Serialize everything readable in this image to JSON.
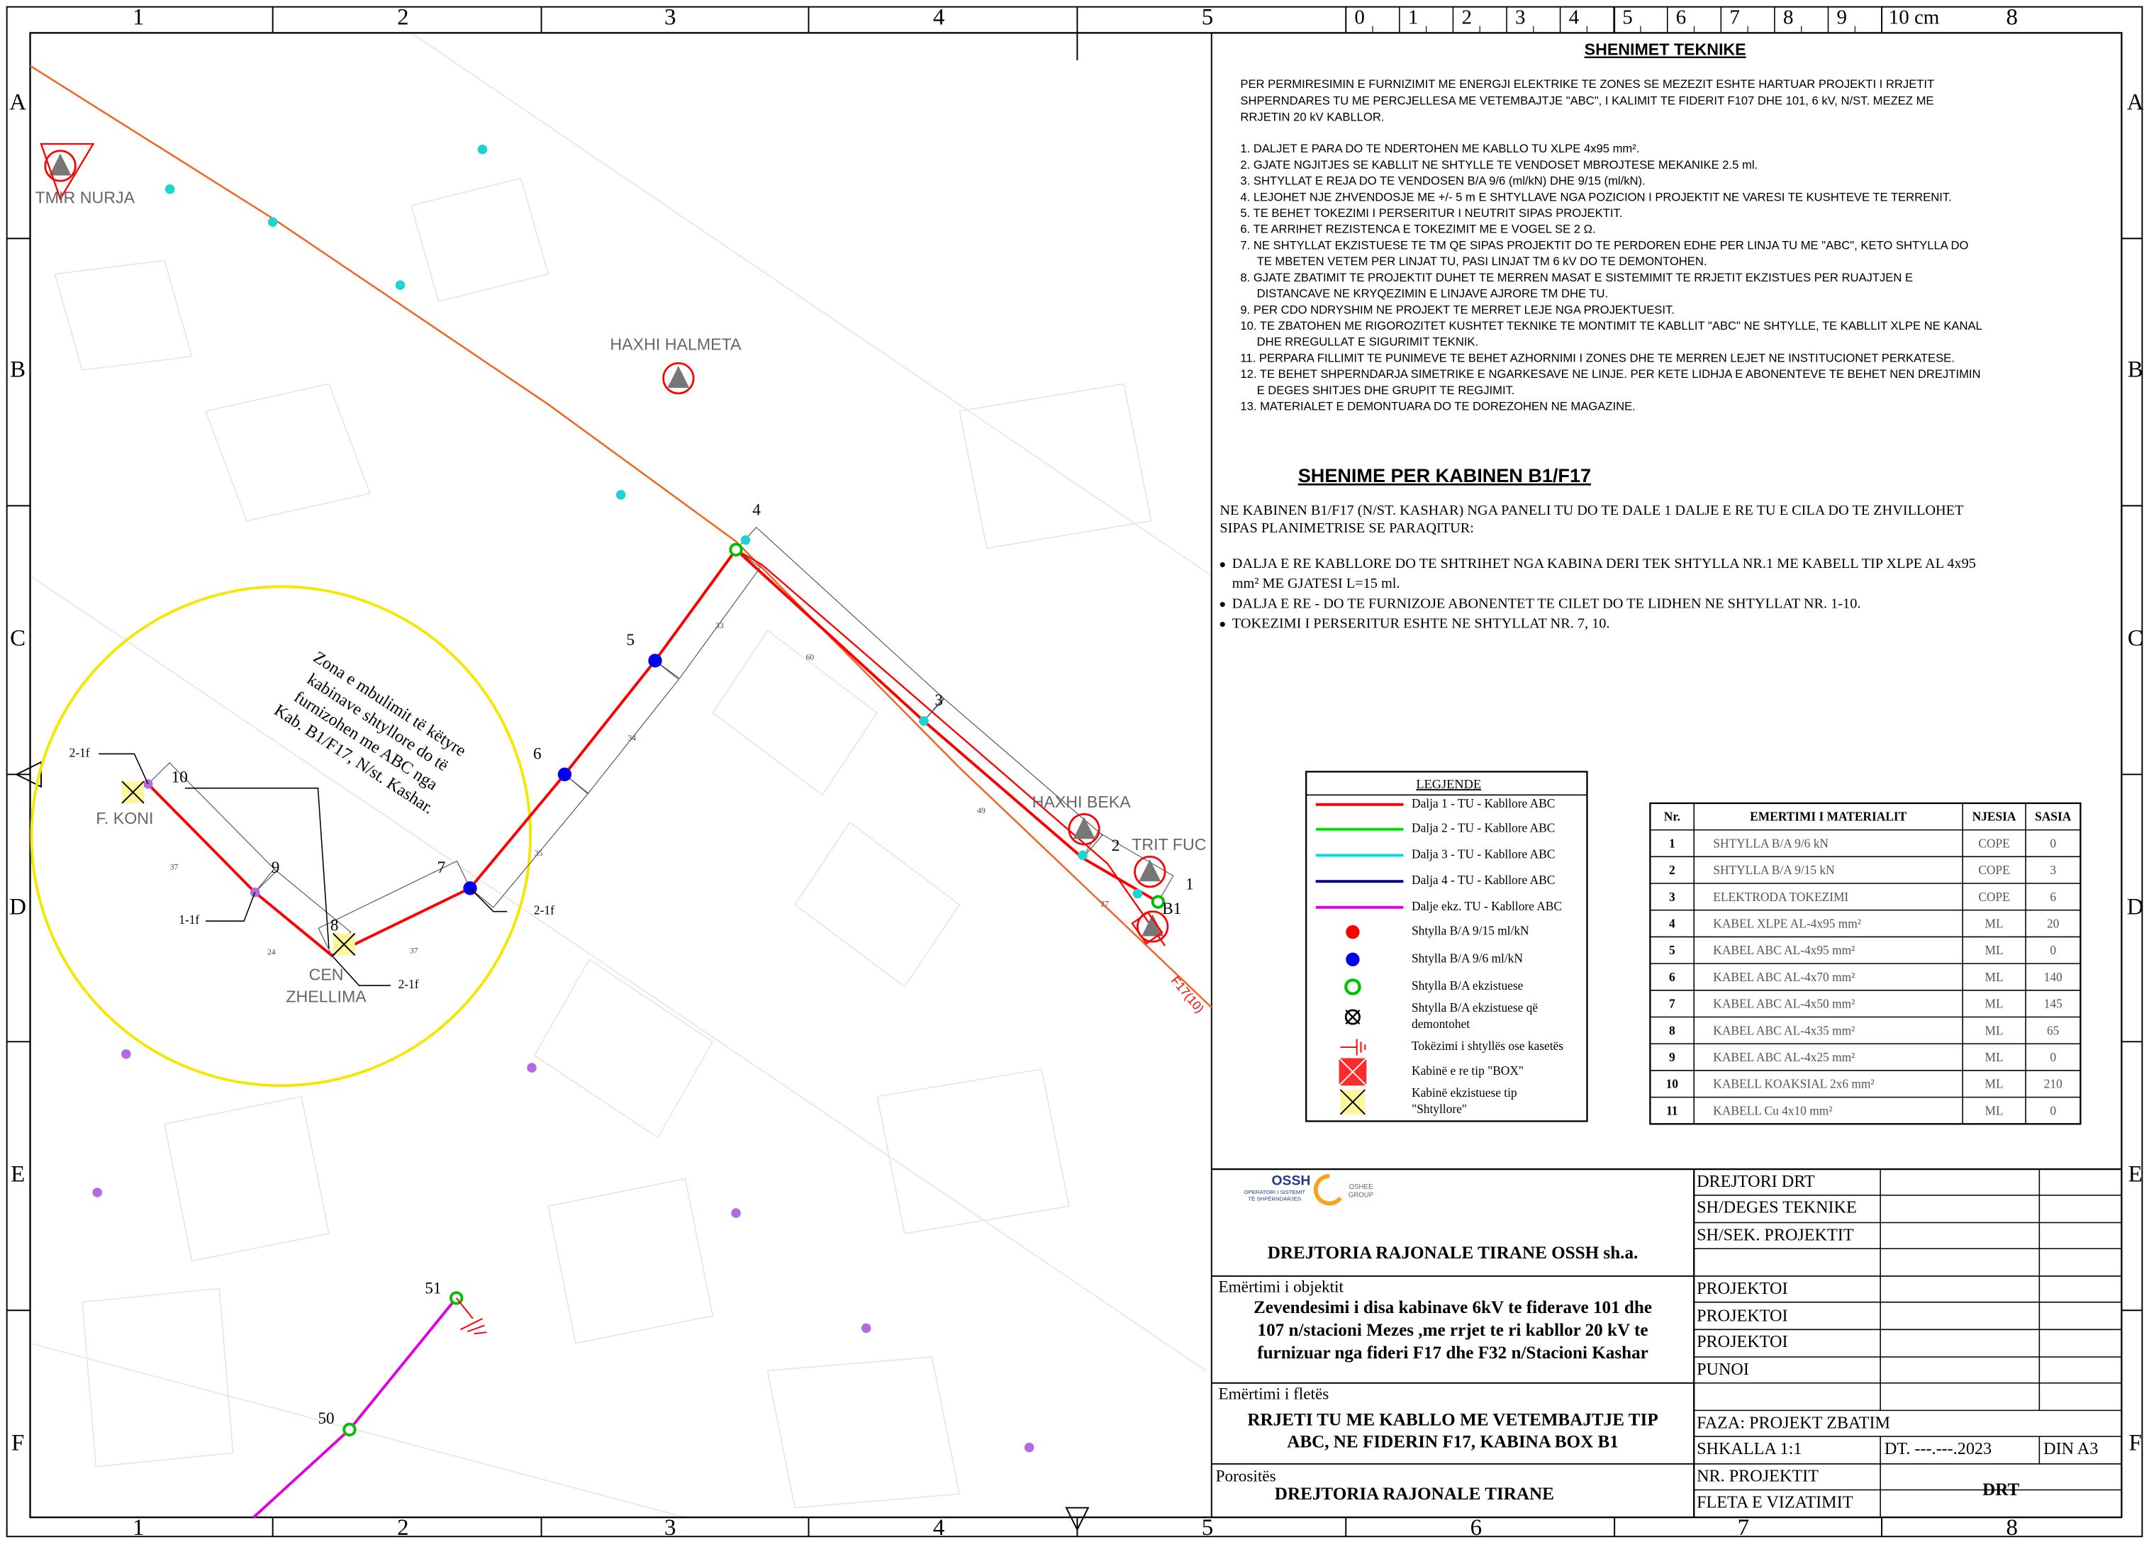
{
  "frame": {
    "columns": [
      "1",
      "2",
      "3",
      "4",
      "5",
      "6",
      "7",
      "8"
    ],
    "rows": [
      "A",
      "B",
      "C",
      "D",
      "E",
      "F"
    ],
    "scale_labels": [
      "0",
      "1",
      "2",
      "3",
      "4",
      "5",
      "6",
      "7",
      "8",
      "9",
      "10 cm"
    ]
  },
  "map": {
    "places": [
      "TMIR NURJA",
      "HAXHI HALMETA",
      "HAXHI BEKA",
      "TRIT FUC",
      "F. KONI",
      "CEN",
      "ZHELLIMA"
    ],
    "poles": [
      "1",
      "2",
      "3",
      "4",
      "5",
      "6",
      "7",
      "8",
      "9",
      "10",
      "51",
      "50",
      "B1"
    ],
    "zone_note": [
      "Zona e mbulimit të këtyre",
      "kabinave shtyllore do të",
      "furnizohen me ABC nga",
      "Kab. B1/F17, N/st. Kashar."
    ],
    "connectors": [
      "2-1f",
      "1-1f",
      "2-1f",
      "2-1f"
    ],
    "lengths": [
      "37",
      "24",
      "37",
      "35",
      "34",
      "33",
      "60",
      "49",
      "27"
    ],
    "feeder": "F17(10)"
  },
  "notes": {
    "title": "SHENIMET TEKNIKE",
    "intro": [
      "PER PERMIRESIMIN E FURNIZIMIT ME ENERGJI ELEKTRIKE TE ZONES SE MEZEZIT ESHTE HARTUAR PROJEKTI I RRJETIT",
      "SHPERNDARES TU ME PERCJELLESA ME VETEMBAJTJE \"ABC\", I KALIMIT TE FIDERIT F107 DHE 101, 6 kV, N/ST. MEZEZ ME",
      "RRJETIN 20 kV KABLLOR."
    ],
    "items": [
      [
        "1.  DALJET E PARA DO TE NDERTOHEN ME KABLLO TU XLPE 4x95 mm²."
      ],
      [
        "2.  GJATE NGJITJES SE KABLLIT NE SHTYLLE TE VENDOSET MBROJTESE MEKANIKE 2.5 ml."
      ],
      [
        "3.  SHTYLLAT E REJA DO TE VENDOSEN B/A 9/6 (ml/kN) DHE 9/15 (ml/kN)."
      ],
      [
        "4.  LEJOHET NJE ZHVENDOSJE ME +/- 5 m E SHTYLLAVE NGA POZICION I PROJEKTIT NE VARESI TE KUSHTEVE TE TERRENIT."
      ],
      [
        "5.  TE BEHET TOKEZIMI I PERSERITUR I NEUTRIT SIPAS PROJEKTIT."
      ],
      [
        "6.  TE ARRIHET REZISTENCA E TOKEZIMIT ME E VOGEL SE 2 Ω."
      ],
      [
        "7.  NE SHTYLLAT EKZISTUESE TE TM QE SIPAS PROJEKTIT DO TE PERDOREN EDHE PER LINJA TU ME \"ABC\", KETO SHTYLLA DO",
        "TE MBETEN VETEM PER LINJAT TU, PASI LINJAT TM 6 kV DO TE DEMONTOHEN."
      ],
      [
        "8.  GJATE ZBATIMIT TE PROJEKTIT DUHET TE MERREN MASAT E SISTEMIMIT TE RRJETIT EKZISTUES PER RUAJTJEN E",
        "DISTANCAVE NE KRYQEZIMIN E LINJAVE AJRORE TM DHE TU."
      ],
      [
        "9.  PER CDO NDRYSHIM NE PROJEKT TE MERRET LEJE NGA PROJEKTUESIT."
      ],
      [
        "10. TE ZBATOHEN ME RIGOROZITET KUSHTET TEKNIKE TE MONTIMIT TE KABLLIT \"ABC\" NE SHTYLLE, TE KABLLIT XLPE NE KANAL",
        "DHE RREGULLAT E SIGURIMIT TEKNIK."
      ],
      [
        "11. PERPARA FILLIMIT TE PUNIMEVE TE BEHET AZHORNIMI I ZONES DHE TE MERREN LEJET NE INSTITUCIONET PERKATESE."
      ],
      [
        "12. TE BEHET SHPERNDARJA SIMETRIKE E NGARKESAVE NE LINJE. PER KETE LIDHJA E ABONENTEVE TE BEHET NEN DREJTIMIN",
        "E DEGES SHITJES DHE GRUPIT TE REGJIMIT."
      ],
      [
        "13. MATERIALET E DEMONTUARA DO TE DOREZOHEN NE MAGAZINE."
      ]
    ]
  },
  "cabin_notes": {
    "title": "SHENIME PER KABINEN B1/F17",
    "intro": [
      "NE KABINEN B1/F17 (N/ST. KASHAR) NGA PANELI TU DO TE DALE 1 DALJE E RE TU E CILA DO TE ZHVILLOHET",
      "SIPAS PLANIMETRISE SE PARAQITUR:"
    ],
    "bullets": [
      [
        "DALJA E RE KABLLORE DO TE SHTRIHET NGA KABINA DERI TEK SHTYLLA NR.1 ME KABELL TIP XLPE AL 4x95",
        "mm² ME GJATESI L=15 ml."
      ],
      [
        "DALJA E RE - DO TE FURNIZOJE ABONENTET TE CILET DO TE LIDHEN NE SHTYLLAT NR. 1-10."
      ],
      [
        "TOKEZIMI I PERSERITUR ESHTE NE SHTYLLAT NR. 7, 10."
      ]
    ]
  },
  "legend": {
    "title": "LEGJENDE",
    "items": [
      [
        "Dalja 1 - TU - Kabllore ABC"
      ],
      [
        "Dalja 2 - TU - Kabllore ABC"
      ],
      [
        "Dalja 3 - TU - Kabllore ABC"
      ],
      [
        "Dalja 4 - TU - Kabllore ABC"
      ],
      [
        "Dalje ekz. TU - Kabllore ABC"
      ],
      [
        "Shtylla B/A 9/15 ml/kN"
      ],
      [
        "Shtylla B/A 9/6 ml/kN"
      ],
      [
        "Shtylla B/A ekzistuese"
      ],
      [
        "Shtylla B/A ekzistuese që",
        "demontohet"
      ],
      [
        "Tokëzimi i shtyllës ose kasetës"
      ],
      [
        "Kabinë e re tip \"BOX\""
      ],
      [
        "Kabinë ekzistuese tip",
        "\"Shtyllore\""
      ]
    ]
  },
  "materials": {
    "header": [
      "Nr.",
      "EMERTIMI I MATERIALIT",
      "NJESIA",
      "SASIA"
    ],
    "rows": [
      [
        "1",
        "SHTYLLA B/A 9/6 kN",
        "COPE",
        "0"
      ],
      [
        "2",
        "SHTYLLA B/A 9/15 kN",
        "COPE",
        "3"
      ],
      [
        "3",
        "ELEKTRODA TOKEZIMI",
        "COPE",
        "6"
      ],
      [
        "4",
        "KABEL XLPE AL-4x95 mm²",
        "ML",
        "20"
      ],
      [
        "5",
        "KABEL ABC AL-4x95 mm²",
        "ML",
        "0"
      ],
      [
        "6",
        "KABEL ABC AL-4x70 mm²",
        "ML",
        "140"
      ],
      [
        "7",
        "KABEL ABC AL-4x50 mm²",
        "ML",
        "145"
      ],
      [
        "8",
        "KABEL ABC AL-4x35 mm²",
        "ML",
        "65"
      ],
      [
        "9",
        "KABEL ABC AL-4x25 mm²",
        "ML",
        "0"
      ],
      [
        "10",
        "KABELL KOAKSIAL 2x6 mm²",
        "ML",
        "210"
      ],
      [
        "11",
        "KABELL Cu 4x10 mm²",
        "ML",
        "0"
      ]
    ]
  },
  "title_block": {
    "logo": [
      "OSSH",
      "OPERATORI I SISTEMIT",
      "TË SHPËRNDARJES",
      "OSHEE",
      "GROUP"
    ],
    "company": "DREJTORIA RAJONALE TIRANE OSSH sh.a.",
    "object_label": "Emërtimi i objektit",
    "object": [
      "Zevendesimi i disa kabinave 6kV te fiderave 101 dhe",
      "107  n/stacioni Mezes ,me rrjet te ri kabllor 20 kV te",
      "furnizuar nga fideri F17 dhe F32 n/Stacioni  Kashar"
    ],
    "sheet_label": "Emërtimi i fletës",
    "sheet": [
      "RRJETI TU ME KABLLO ME VETEMBAJTJE TIP",
      "ABC, NE FIDERIN F17, KABINA BOX B1"
    ],
    "client_label": "Porositës",
    "client": "DREJTORIA RAJONALE TIRANE",
    "roles": [
      "DREJTORI DRT",
      "SH/DEGES TEKNIKE",
      "SH/SEK. PROJEKTIT",
      "PROJEKTOI",
      "PROJEKTOI",
      "PROJEKTOI",
      "PUNOI"
    ],
    "phase": "FAZA: PROJEKT ZBATIM",
    "scale": "SHKALLA 1:1",
    "date": "DT. ---.---.2023",
    "format": "DIN A3",
    "project_no": "NR. PROJEKTIT",
    "sheet_no": "FLETA E VIZATIMIT",
    "code": "DRT"
  }
}
